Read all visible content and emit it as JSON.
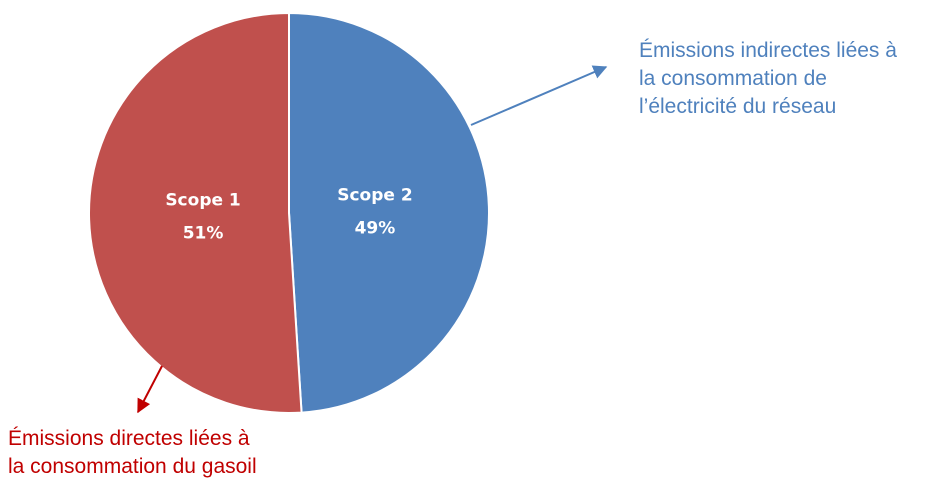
{
  "chart_data": {
    "type": "pie",
    "slices": [
      {
        "name": "Scope 2",
        "value": 49,
        "label": "Scope 2",
        "percent_label": "49%",
        "color": "#4f81bd"
      },
      {
        "name": "Scope 1",
        "value": 51,
        "label": "Scope 1",
        "percent_label": "51%",
        "color": "#c0504d"
      }
    ],
    "annotations": [
      {
        "target": "Scope 2",
        "color": "#4f81bd",
        "lines": [
          "Émissions indirectes liées à",
          "la consommation de",
          "l’électricité du réseau"
        ]
      },
      {
        "target": "Scope 1",
        "color": "#c00000",
        "lines": [
          "Émissions directes liées à",
          "la consommation du gasoil"
        ]
      }
    ]
  }
}
